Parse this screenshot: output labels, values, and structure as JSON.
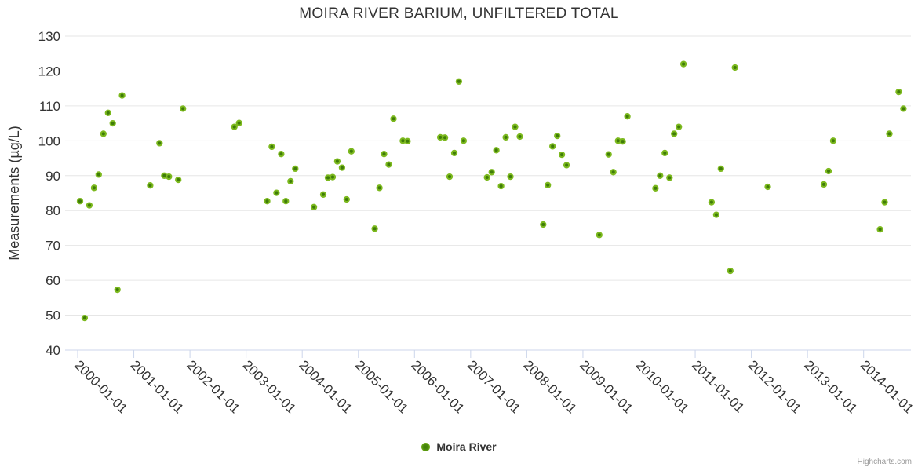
{
  "title": "MOIRA RIVER BARIUM, UNFILTERED TOTAL",
  "y_axis_title": "Measurements (µg/L)",
  "legend": {
    "series_label": "Moira River"
  },
  "credits": "Highcharts.com",
  "colors": {
    "point_rim": "#7cb91e",
    "point_core": "#3f7c08",
    "grid": "#e6e6e6",
    "axis_line": "#ccd6eb",
    "text": "#333333",
    "credits_text": "#999999"
  },
  "chart_data": {
    "type": "scatter",
    "title": "MOIRA RIVER BARIUM, UNFILTERED TOTAL",
    "xlabel": "",
    "ylabel": "Measurements (µg/L)",
    "ylim": [
      40,
      130
    ],
    "y_ticks": [
      40,
      50,
      60,
      70,
      80,
      90,
      100,
      110,
      120,
      130
    ],
    "x_tick_labels": [
      "2000-01-01",
      "2001-01-01",
      "2002-01-01",
      "2003-01-01",
      "2004-01-01",
      "2005-01-01",
      "2006-01-01",
      "2007-01-01",
      "2008-01-01",
      "2009-01-01",
      "2010-01-01",
      "2011-01-01",
      "2012-01-01",
      "2013-01-01",
      "2014-01-01"
    ],
    "grid": "horizontal",
    "legend_position": "bottom-center",
    "series": [
      {
        "name": "Moira River",
        "points": [
          [
            "2000-01",
            82.7
          ],
          [
            "2000-02",
            49.2
          ],
          [
            "2000-03",
            81.5
          ],
          [
            "2000-04",
            86.5
          ],
          [
            "2000-05",
            90.3
          ],
          [
            "2000-06",
            102
          ],
          [
            "2000-07",
            108
          ],
          [
            "2000-08",
            105
          ],
          [
            "2000-09",
            57.3
          ],
          [
            "2000-10",
            113
          ],
          [
            "2001-04",
            87.2
          ],
          [
            "2001-06",
            99.3
          ],
          [
            "2001-07",
            90
          ],
          [
            "2001-08",
            89.7
          ],
          [
            "2001-10",
            88.8
          ],
          [
            "2001-11",
            109.2
          ],
          [
            "2002-10",
            104
          ],
          [
            "2002-11",
            105.1
          ],
          [
            "2003-05",
            82.7
          ],
          [
            "2003-06",
            98.3
          ],
          [
            "2003-07",
            85.1
          ],
          [
            "2003-08",
            96.2
          ],
          [
            "2003-09",
            82.7
          ],
          [
            "2003-10",
            88.4
          ],
          [
            "2003-11",
            92
          ],
          [
            "2004-03",
            81
          ],
          [
            "2004-05",
            84.6
          ],
          [
            "2004-06",
            89.4
          ],
          [
            "2004-07",
            89.6
          ],
          [
            "2004-08",
            94.1
          ],
          [
            "2004-09",
            92.3
          ],
          [
            "2004-10",
            83.2
          ],
          [
            "2004-11",
            97
          ],
          [
            "2005-04",
            74.8
          ],
          [
            "2005-05",
            86.5
          ],
          [
            "2005-06",
            96.2
          ],
          [
            "2005-07",
            93.2
          ],
          [
            "2005-08",
            106.3
          ],
          [
            "2005-10",
            100
          ],
          [
            "2005-11",
            99.9
          ],
          [
            "2006-06",
            101
          ],
          [
            "2006-07",
            100.9
          ],
          [
            "2006-08",
            89.7
          ],
          [
            "2006-09",
            96.5
          ],
          [
            "2006-10",
            117
          ],
          [
            "2006-11",
            100
          ],
          [
            "2007-04",
            89.5
          ],
          [
            "2007-05",
            91
          ],
          [
            "2007-06",
            97.3
          ],
          [
            "2007-07",
            87
          ],
          [
            "2007-08",
            101
          ],
          [
            "2007-09",
            89.7
          ],
          [
            "2007-10",
            104
          ],
          [
            "2007-11",
            101.2
          ],
          [
            "2008-04",
            76
          ],
          [
            "2008-05",
            87.3
          ],
          [
            "2008-06",
            98.4
          ],
          [
            "2008-07",
            101.4
          ],
          [
            "2008-08",
            96
          ],
          [
            "2008-09",
            93
          ],
          [
            "2009-04",
            73
          ],
          [
            "2009-06",
            96.1
          ],
          [
            "2009-07",
            91
          ],
          [
            "2009-08",
            100
          ],
          [
            "2009-09",
            99.8
          ],
          [
            "2009-10",
            107
          ],
          [
            "2010-04",
            86.4
          ],
          [
            "2010-05",
            90
          ],
          [
            "2010-06",
            96.5
          ],
          [
            "2010-07",
            89.4
          ],
          [
            "2010-08",
            102
          ],
          [
            "2010-09",
            104
          ],
          [
            "2010-10",
            122
          ],
          [
            "2011-04",
            82.4
          ],
          [
            "2011-05",
            78.8
          ],
          [
            "2011-06",
            92
          ],
          [
            "2011-08",
            62.7
          ],
          [
            "2011-09",
            121
          ],
          [
            "2012-04",
            86.8
          ],
          [
            "2013-04",
            87.5
          ],
          [
            "2013-05",
            91.3
          ],
          [
            "2013-06",
            100
          ],
          [
            "2014-04",
            74.6
          ],
          [
            "2014-05",
            82.4
          ],
          [
            "2014-06",
            102
          ],
          [
            "2014-08",
            114
          ],
          [
            "2014-09",
            109.2
          ]
        ]
      }
    ]
  }
}
